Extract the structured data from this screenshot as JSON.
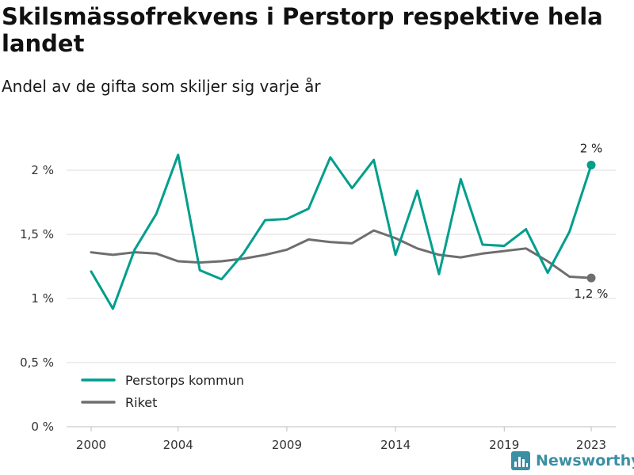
{
  "chart_data": {
    "type": "line",
    "title": "Skilsmässofrekvens i Perstorp respektive hela landet",
    "subtitle": "Andel av de gifta som skiljer sig varje år",
    "xlabel": "",
    "ylabel": "",
    "x": [
      2000,
      2001,
      2002,
      2003,
      2004,
      2005,
      2006,
      2007,
      2008,
      2009,
      2010,
      2011,
      2012,
      2013,
      2014,
      2015,
      2016,
      2017,
      2018,
      2019,
      2020,
      2021,
      2022,
      2023
    ],
    "x_ticks": [
      2000,
      2004,
      2009,
      2014,
      2019,
      2023
    ],
    "x_tick_labels": [
      "2000",
      "2004",
      "2009",
      "2014",
      "2019",
      "2023"
    ],
    "ylim": [
      0,
      2.2
    ],
    "y_ticks": [
      0,
      0.5,
      1,
      1.5,
      2
    ],
    "y_tick_labels": [
      "0 %",
      "0,5 %",
      "1 %",
      "1,5 %",
      "2 %"
    ],
    "grid": true,
    "legend_position": "bottom-left",
    "series": [
      {
        "name": "Perstorps kommun",
        "color": "#009e8c",
        "values": [
          1.21,
          0.92,
          1.38,
          1.66,
          2.12,
          1.22,
          1.15,
          1.35,
          1.61,
          1.62,
          1.7,
          2.1,
          1.86,
          2.08,
          1.34,
          1.84,
          1.19,
          1.93,
          1.42,
          1.41,
          1.54,
          1.2,
          1.52,
          2.04
        ],
        "end_label": "2 %"
      },
      {
        "name": "Riket",
        "color": "#6e6e70",
        "values": [
          1.36,
          1.34,
          1.36,
          1.35,
          1.29,
          1.28,
          1.29,
          1.31,
          1.34,
          1.38,
          1.46,
          1.44,
          1.43,
          1.53,
          1.47,
          1.39,
          1.34,
          1.32,
          1.35,
          1.37,
          1.39,
          1.29,
          1.17,
          1.16
        ],
        "end_label": "1,2 %"
      }
    ]
  },
  "branding": {
    "logo_text": "Newsworthy",
    "logo_color": "#3a8fa3"
  }
}
